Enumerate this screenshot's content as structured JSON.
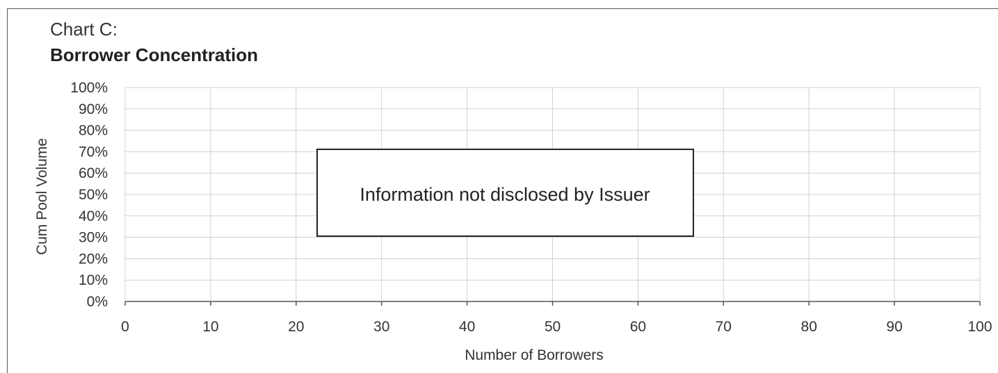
{
  "chart_data": {
    "type": "line",
    "title": "Chart C:",
    "subtitle": "Borrower Concentration",
    "xlabel": "Number of Borrowers",
    "ylabel": "Cum Pool Volume",
    "xlim": [
      0,
      100
    ],
    "ylim": [
      0,
      100
    ],
    "x_ticks": [
      0,
      10,
      20,
      30,
      40,
      50,
      60,
      70,
      80,
      90,
      100
    ],
    "y_ticks": [
      0,
      10,
      20,
      30,
      40,
      50,
      60,
      70,
      80,
      90,
      100
    ],
    "x_tick_labels": [
      "0",
      "10",
      "20",
      "30",
      "40",
      "50",
      "60",
      "70",
      "80",
      "90",
      "100"
    ],
    "y_tick_labels": [
      "0%",
      "10%",
      "20%",
      "30%",
      "40%",
      "50%",
      "60%",
      "70%",
      "80%",
      "90%",
      "100%"
    ],
    "grid": true,
    "series": [],
    "annotation": "Information not disclosed by Issuer",
    "colors": {
      "grid": "#d0d0d0",
      "axis": "#555555",
      "box_border": "#222222"
    }
  }
}
